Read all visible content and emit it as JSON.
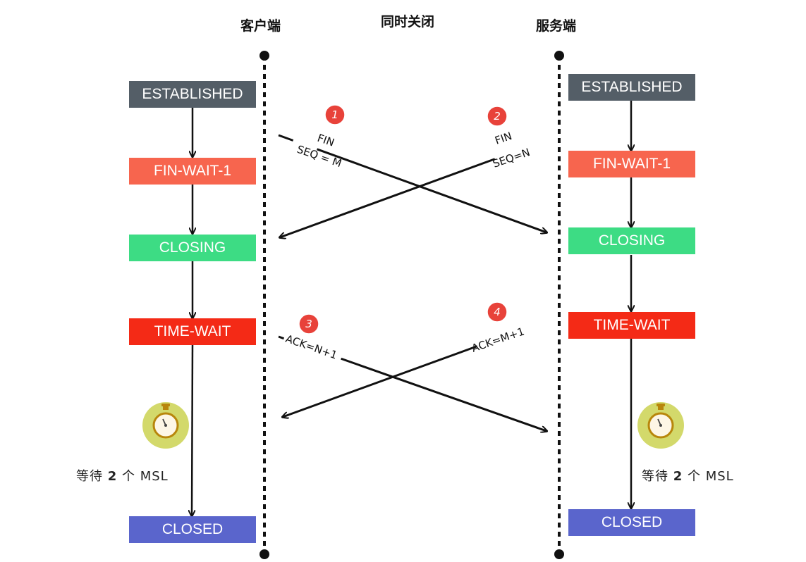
{
  "headers": {
    "client": "客户端",
    "center": "同时关闭",
    "server": "服务端"
  },
  "client_states": [
    "ESTABLISHED",
    "FIN-WAIT-1",
    "CLOSING",
    "TIME-WAIT",
    "CLOSED"
  ],
  "server_states": [
    "ESTABLISHED",
    "FIN-WAIT-1",
    "CLOSING",
    "TIME-WAIT",
    "CLOSED"
  ],
  "state_colors": {
    "ESTABLISHED": "#545e67",
    "FIN-WAIT-1": "#f7654e",
    "CLOSING": "#3ddc84",
    "TIME-WAIT": "#f42a16",
    "CLOSED": "#5a65cc"
  },
  "messages": {
    "m1": {
      "badge": "1",
      "line1": "FIN",
      "line2": "SEQ = M"
    },
    "m2": {
      "badge": "2",
      "line1": "FIN",
      "line2": "SEQ=N"
    },
    "m3": {
      "badge": "3",
      "line1": "ACK=N+1"
    },
    "m4": {
      "badge": "4",
      "line1": "ACK=M+1"
    }
  },
  "wait": {
    "prefix": "等待",
    "number": "2",
    "suffix": "个 MSL"
  },
  "icons": [
    "stopwatch-icon"
  ]
}
